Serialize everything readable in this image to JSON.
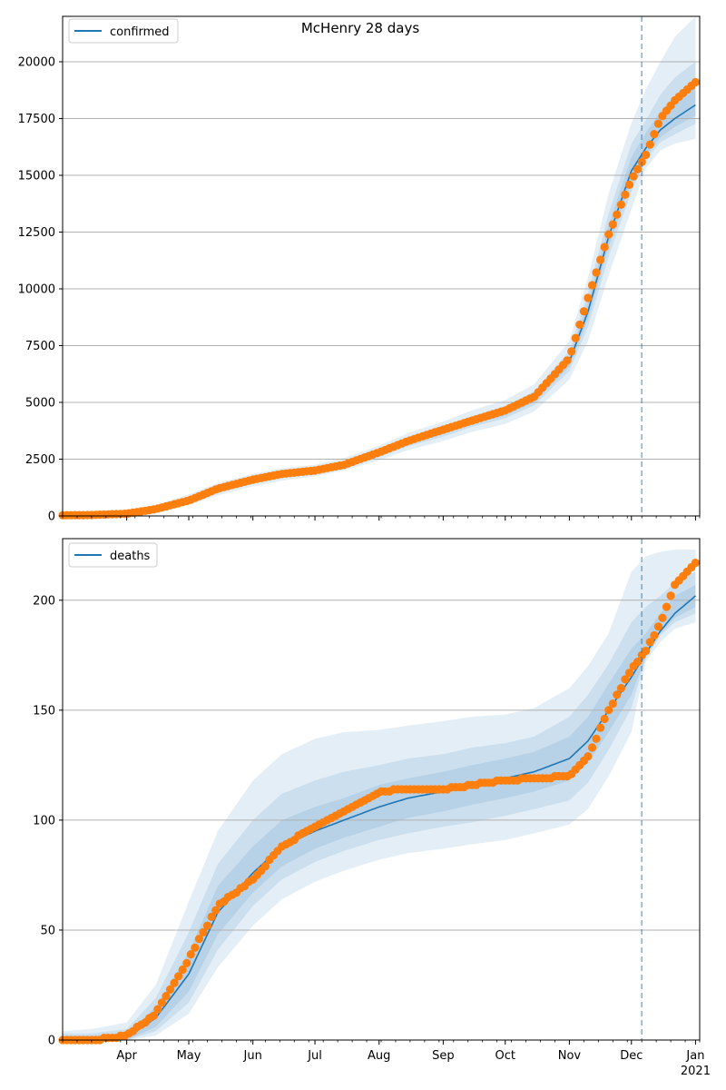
{
  "figure": {
    "title": "McHenry 28 days"
  },
  "colors": {
    "model": "#1f77b4",
    "observed": "#ff7f0e",
    "band": "#1f77b4",
    "grid": "#b0b0b0",
    "forecast_line": "#1f77b4"
  },
  "x_axis": {
    "month_labels": [
      "Apr",
      "May",
      "Jun",
      "Jul",
      "Aug",
      "Sep",
      "Oct",
      "Nov",
      "Dec",
      "Jan"
    ],
    "year_label": "2021"
  },
  "chart_data": [
    {
      "type": "line",
      "panel": "top",
      "legend": "confirmed",
      "legend_position": "top-left",
      "x": [
        "2020-03-01",
        "2020-03-15",
        "2020-04-01",
        "2020-04-15",
        "2020-05-01",
        "2020-05-15",
        "2020-06-01",
        "2020-06-15",
        "2020-07-01",
        "2020-07-15",
        "2020-08-01",
        "2020-08-15",
        "2020-09-01",
        "2020-09-15",
        "2020-10-01",
        "2020-10-15",
        "2020-11-01",
        "2020-11-10",
        "2020-11-20",
        "2020-12-01",
        "2020-12-08",
        "2020-12-15",
        "2020-12-22",
        "2021-01-01"
      ],
      "model_median": [
        30,
        40,
        110,
        320,
        700,
        1150,
        1550,
        1800,
        1990,
        2250,
        2750,
        3250,
        3700,
        4150,
        4550,
        5150,
        6800,
        9000,
        12300,
        15200,
        16200,
        17000,
        17500,
        18100
      ],
      "observed": [
        30,
        40,
        100,
        300,
        680,
        1200,
        1600,
        1850,
        2000,
        2250,
        2800,
        3300,
        3800,
        4200,
        4650,
        5250,
        6950,
        9600,
        12400,
        14800,
        15900,
        17500,
        18300,
        19100
      ],
      "bands": [
        {
          "level": "outer",
          "low": [
            0,
            0,
            40,
            180,
            500,
            900,
            1300,
            1550,
            1750,
            2000,
            2450,
            2900,
            3300,
            3700,
            4050,
            4600,
            6000,
            7700,
            10600,
            13500,
            15300,
            16100,
            16400,
            16600
          ],
          "high": [
            90,
            110,
            200,
            480,
            950,
            1450,
            1850,
            2100,
            2250,
            2550,
            3100,
            3650,
            4150,
            4650,
            5100,
            5800,
            7700,
            10500,
            14200,
            17300,
            18800,
            20000,
            21100,
            22000
          ]
        },
        {
          "level": "middle",
          "low": [
            10,
            15,
            70,
            240,
            590,
            1010,
            1410,
            1660,
            1860,
            2110,
            2590,
            3070,
            3490,
            3920,
            4300,
            4870,
            6380,
            8320,
            11420,
            14290,
            15670,
            16450,
            16810,
            17270
          ],
          "high": [
            60,
            75,
            160,
            410,
            840,
            1320,
            1720,
            1960,
            2130,
            2410,
            2930,
            3460,
            3920,
            4400,
            4830,
            5490,
            7260,
            9820,
            13320,
            16390,
            17430,
            18550,
            19310,
            20000
          ]
        },
        {
          "level": "inner",
          "low": [
            20,
            25,
            90,
            280,
            650,
            1080,
            1480,
            1730,
            1930,
            2180,
            2670,
            3160,
            3600,
            4040,
            4420,
            5010,
            6590,
            8660,
            11860,
            14750,
            15880,
            16680,
            17130,
            17630
          ],
          "high": [
            45,
            55,
            135,
            360,
            760,
            1230,
            1630,
            1870,
            2060,
            2330,
            2840,
            3350,
            3810,
            4270,
            4690,
            5310,
            7040,
            9410,
            12810,
            15800,
            16880,
            17800,
            18500,
            19200
          ]
        }
      ],
      "forecast_start": "2020-12-06",
      "ylim": [
        0,
        22000
      ],
      "yticks": [
        0,
        2500,
        5000,
        7500,
        10000,
        12500,
        15000,
        17500,
        20000
      ],
      "xlim": [
        "2020-03-01",
        "2021-01-03"
      ],
      "grid": "y"
    },
    {
      "type": "line",
      "panel": "bottom",
      "legend": "deaths",
      "legend_position": "top-left",
      "x": [
        "2020-03-01",
        "2020-03-15",
        "2020-04-01",
        "2020-04-15",
        "2020-05-01",
        "2020-05-15",
        "2020-06-01",
        "2020-06-15",
        "2020-07-01",
        "2020-07-15",
        "2020-08-01",
        "2020-08-15",
        "2020-09-01",
        "2020-09-15",
        "2020-10-01",
        "2020-10-15",
        "2020-11-01",
        "2020-11-10",
        "2020-11-20",
        "2020-12-01",
        "2020-12-08",
        "2020-12-15",
        "2020-12-22",
        "2021-01-01"
      ],
      "model_median": [
        0,
        0,
        1,
        10,
        30,
        58,
        76,
        88,
        95,
        100,
        106,
        110,
        113,
        116,
        119,
        122,
        128,
        136,
        150,
        165,
        176,
        186,
        194,
        202
      ],
      "observed": [
        0,
        0,
        2,
        12,
        37,
        61,
        73,
        88,
        97,
        104,
        113,
        114,
        114,
        116,
        118,
        119,
        120,
        129,
        150,
        169,
        177,
        190,
        207,
        217
      ],
      "bands": [
        {
          "level": "outer",
          "low": [
            0,
            0,
            0,
            2,
            12,
            33,
            52,
            64,
            72,
            77,
            82,
            85,
            87,
            89,
            91,
            94,
            98,
            105,
            120,
            140,
            172,
            181,
            187,
            190
          ],
          "high": [
            4,
            5,
            8,
            25,
            63,
            95,
            118,
            130,
            137,
            140,
            141,
            143,
            145,
            147,
            148,
            151,
            160,
            170,
            185,
            213,
            220,
            222,
            223,
            223
          ]
        },
        {
          "level": "middle",
          "low": [
            0,
            0,
            0,
            4,
            17,
            41,
            61,
            73,
            81,
            86,
            91,
            94,
            97,
            99,
            102,
            105,
            109,
            117,
            132,
            151,
            174,
            184,
            190,
            194
          ],
          "high": [
            3,
            3,
            5,
            19,
            49,
            80,
            100,
            112,
            118,
            122,
            125,
            128,
            130,
            133,
            135,
            138,
            147,
            157,
            171,
            190,
            197,
            202,
            208,
            213
          ]
        },
        {
          "level": "inner",
          "low": [
            0,
            0,
            0,
            6,
            22,
            48,
            67,
            79,
            87,
            92,
            97,
            101,
            104,
            107,
            110,
            113,
            118,
            126,
            140,
            157,
            174,
            185,
            192,
            197
          ],
          "high": [
            2,
            2,
            3,
            15,
            40,
            70,
            88,
            100,
            106,
            110,
            116,
            119,
            122,
            125,
            128,
            131,
            138,
            147,
            162,
            178,
            185,
            194,
            202,
            207
          ]
        }
      ],
      "forecast_start": "2020-12-06",
      "ylim": [
        0,
        228
      ],
      "yticks": [
        0,
        50,
        100,
        150,
        200
      ],
      "xlim": [
        "2020-03-01",
        "2021-01-03"
      ],
      "grid": "y"
    }
  ]
}
